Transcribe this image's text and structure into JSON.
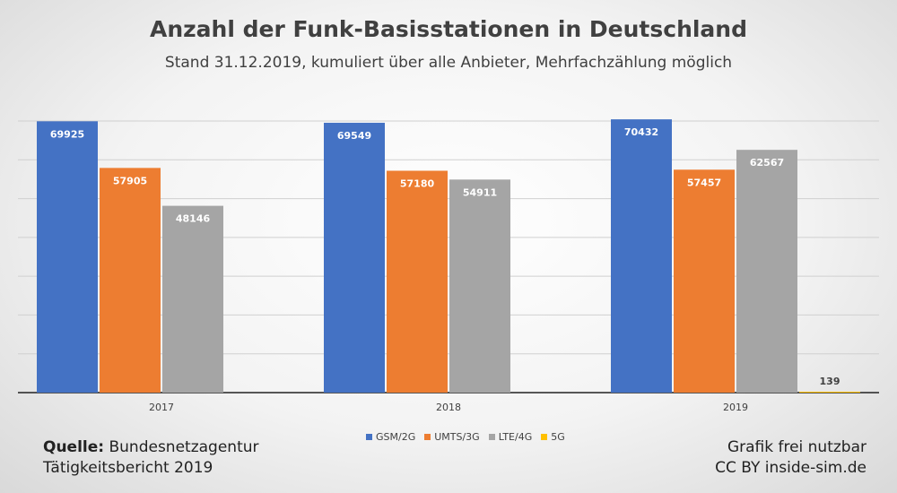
{
  "chart_data": {
    "type": "bar",
    "title": "Anzahl der Funk-Basisstationen in Deutschland",
    "subtitle": "Stand 31.12.2019, kumuliert über alle Anbieter, Mehrfachzählung möglich",
    "categories": [
      "2017",
      "2018",
      "2019"
    ],
    "series": [
      {
        "name": "GSM/2G",
        "color": "#4472C4",
        "values": [
          69925,
          69549,
          70432
        ]
      },
      {
        "name": "UMTS/3G",
        "color": "#ED7D31",
        "values": [
          57905,
          57180,
          57457
        ]
      },
      {
        "name": "LTE/4G",
        "color": "#A5A5A5",
        "values": [
          48146,
          54911,
          62567
        ]
      },
      {
        "name": "5G",
        "color": "#FFC000",
        "values": [
          null,
          null,
          139
        ]
      }
    ],
    "ylim": [
      0,
      70000
    ],
    "grid": true,
    "legend_position": "bottom",
    "xlabel": "",
    "ylabel": ""
  },
  "footer": {
    "source_label": "Quelle:",
    "source_name": "Bundesnetzagentur",
    "source_report": "Tätigkeitsbericht 2019",
    "license_line1": "Grafik frei nutzbar",
    "license_line2": "CC BY inside-sim.de"
  }
}
